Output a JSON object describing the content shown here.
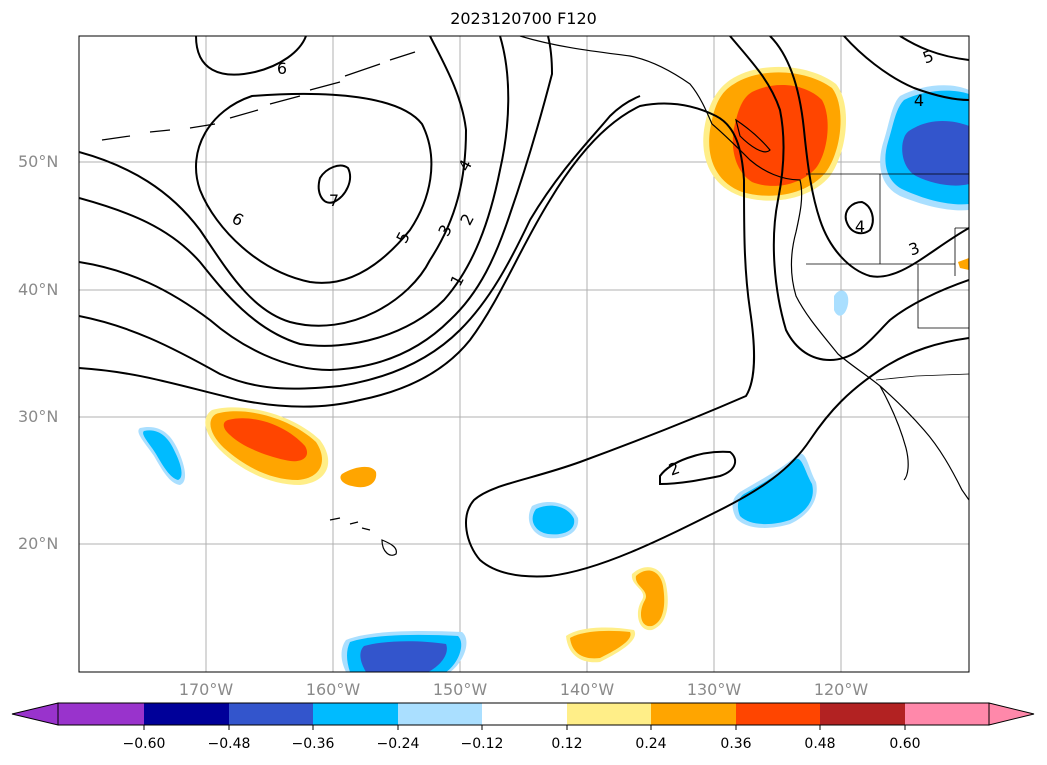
{
  "title": "2023120700 F120",
  "latitude_labels": [
    "50°N",
    "40°N",
    "30°N",
    "20°N"
  ],
  "longitude_labels": [
    "170°W",
    "160°W",
    "150°W",
    "140°W",
    "130°W",
    "120°W"
  ],
  "contour_labels": [
    "1",
    "2",
    "3",
    "4",
    "5",
    "6",
    "7",
    "2",
    "3",
    "4",
    "4",
    "5",
    "6"
  ],
  "colorbar": {
    "tick_labels": [
      "−0.60",
      "−0.48",
      "−0.36",
      "−0.24",
      "−0.12",
      "0.12",
      "0.24",
      "0.36",
      "0.48",
      "0.60"
    ],
    "colors": [
      "#9933cc",
      "#000099",
      "#3355cc",
      "#00bbff",
      "#aadfff",
      "#ffffff",
      "#ffee88",
      "#ffa500",
      "#ff4500",
      "#b22222",
      "#ff88aa"
    ]
  }
}
